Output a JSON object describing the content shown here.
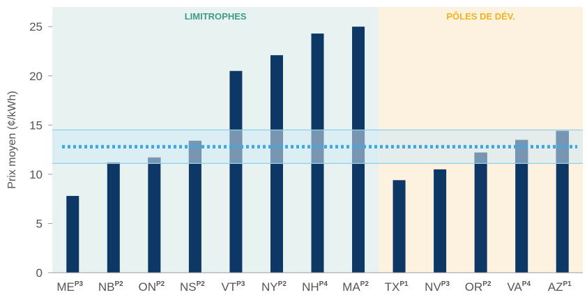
{
  "chart_data": {
    "type": "bar",
    "ylabel": "Prix moyen (¢/kWh)",
    "ylim": [
      0,
      27
    ],
    "yticks": [
      0,
      5,
      10,
      15,
      20,
      25
    ],
    "categories": [
      "ME",
      "NB",
      "ON",
      "NS",
      "VT",
      "NY",
      "NH",
      "MA",
      "TX",
      "NV",
      "OR",
      "VA",
      "AZ"
    ],
    "superscripts": [
      "P3",
      "P2",
      "P2",
      "P2",
      "P3",
      "P2",
      "P4",
      "P2",
      "P1",
      "P3",
      "P2",
      "P4",
      "P1"
    ],
    "values": [
      7.8,
      11.2,
      11.7,
      13.4,
      20.5,
      22.1,
      24.3,
      25.0,
      9.4,
      10.5,
      12.2,
      13.5,
      14.4
    ],
    "groups": [
      {
        "label": "LIMITROPHES",
        "start": 0,
        "end": 7,
        "bg": "#e8f3f1",
        "color": "#3f9a8c"
      },
      {
        "label": "PÔLES DE DÉV.",
        "start": 8,
        "end": 12,
        "bg": "#fdf2e0",
        "color": "#f2b21c"
      }
    ],
    "reference_band": {
      "low": 11.1,
      "high": 14.5,
      "mean": 12.8
    },
    "colors": {
      "bar": "#0d3866",
      "band_fill": "#cfe9f5",
      "band_edge": "#8fd0ea",
      "mean_line": "#3da8e8",
      "overlap": "#7896b2",
      "axis": "#555555"
    }
  }
}
